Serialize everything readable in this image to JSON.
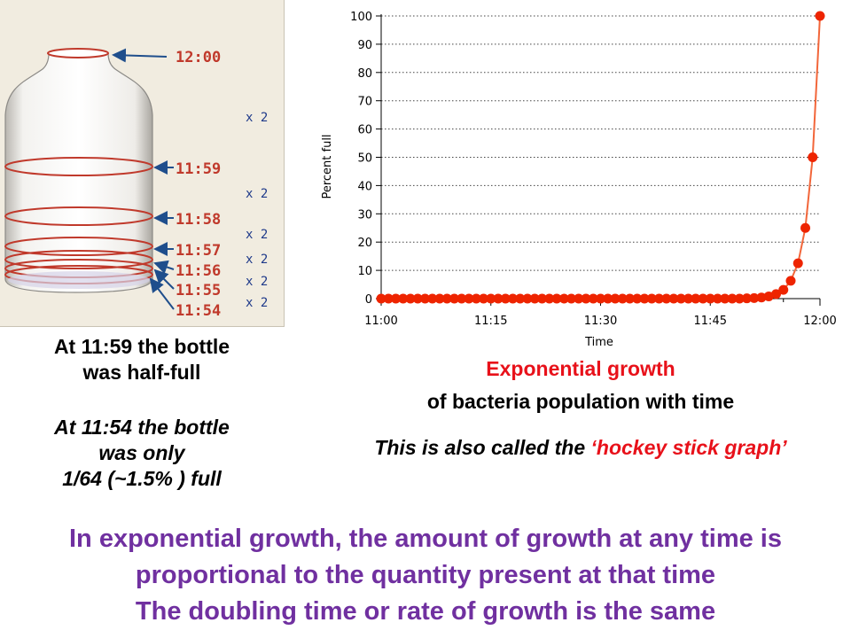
{
  "bottle": {
    "times": [
      "12:00",
      "11:59",
      "11:58",
      "11:57",
      "11:56",
      "11:55",
      "11:54"
    ],
    "factor_label": "x 2"
  },
  "chart_data": {
    "type": "line",
    "xlabel": "Time",
    "ylabel": "Percent full",
    "x_tick_labels": [
      "11:00",
      "11:15",
      "11:30",
      "11:45",
      "12:00"
    ],
    "x_ticks_minutes": [
      0,
      15,
      30,
      45,
      60
    ],
    "y_ticks": [
      0,
      10,
      20,
      30,
      40,
      50,
      60,
      70,
      80,
      90,
      100
    ],
    "xlim": [
      0,
      60
    ],
    "ylim": [
      0,
      100
    ],
    "grid": "horizontal dotted",
    "line_color": "#f2663a",
    "marker_color": "#ee2400",
    "x_minutes_after_1100": [
      0,
      1,
      2,
      3,
      4,
      5,
      6,
      7,
      8,
      9,
      10,
      11,
      12,
      13,
      14,
      15,
      16,
      17,
      18,
      19,
      20,
      21,
      22,
      23,
      24,
      25,
      26,
      27,
      28,
      29,
      30,
      31,
      32,
      33,
      34,
      35,
      36,
      37,
      38,
      39,
      40,
      41,
      42,
      43,
      44,
      45,
      46,
      47,
      48,
      49,
      50,
      51,
      52,
      53,
      54,
      55,
      56,
      57,
      58,
      59,
      60
    ],
    "y": [
      0,
      0,
      0,
      0,
      0,
      0,
      0,
      0,
      0,
      0,
      0,
      0,
      0,
      0,
      0,
      0,
      0,
      0,
      0,
      0,
      0,
      0,
      0,
      0,
      0,
      0,
      0,
      0,
      0,
      0,
      0,
      0,
      0,
      0,
      0,
      0,
      0,
      0,
      0,
      0,
      0,
      0,
      0,
      0,
      0,
      0,
      0,
      0,
      0,
      0,
      0.1,
      0.2,
      0.4,
      0.8,
      1.6,
      3.1,
      6.3,
      12.5,
      25,
      50,
      100
    ]
  },
  "notes": {
    "half_full_line1": "At 11:59 the bottle",
    "half_full_line2": "was half-full",
    "at_1154_line1": "At 11:54 the bottle",
    "at_1154_line2": "was only",
    "at_1154_line3": "1/64 (~1.5% ) full"
  },
  "chart_caption": {
    "title": "Exponential growth",
    "subtitle": "of bacteria population with time",
    "note_prefix": "This is also called the ",
    "note_highlight": "‘hockey stick graph’"
  },
  "summary": {
    "line1": "In exponential growth, the amount of growth at any time is",
    "line2": "proportional to the quantity present at that time",
    "line3": "The doubling time or rate of growth is the same"
  },
  "colors": {
    "title_red": "#e8111a",
    "summary_purple": "#7030a0",
    "bottle_ring": "#c0392b",
    "arrow_blue": "#1f4e8c"
  }
}
